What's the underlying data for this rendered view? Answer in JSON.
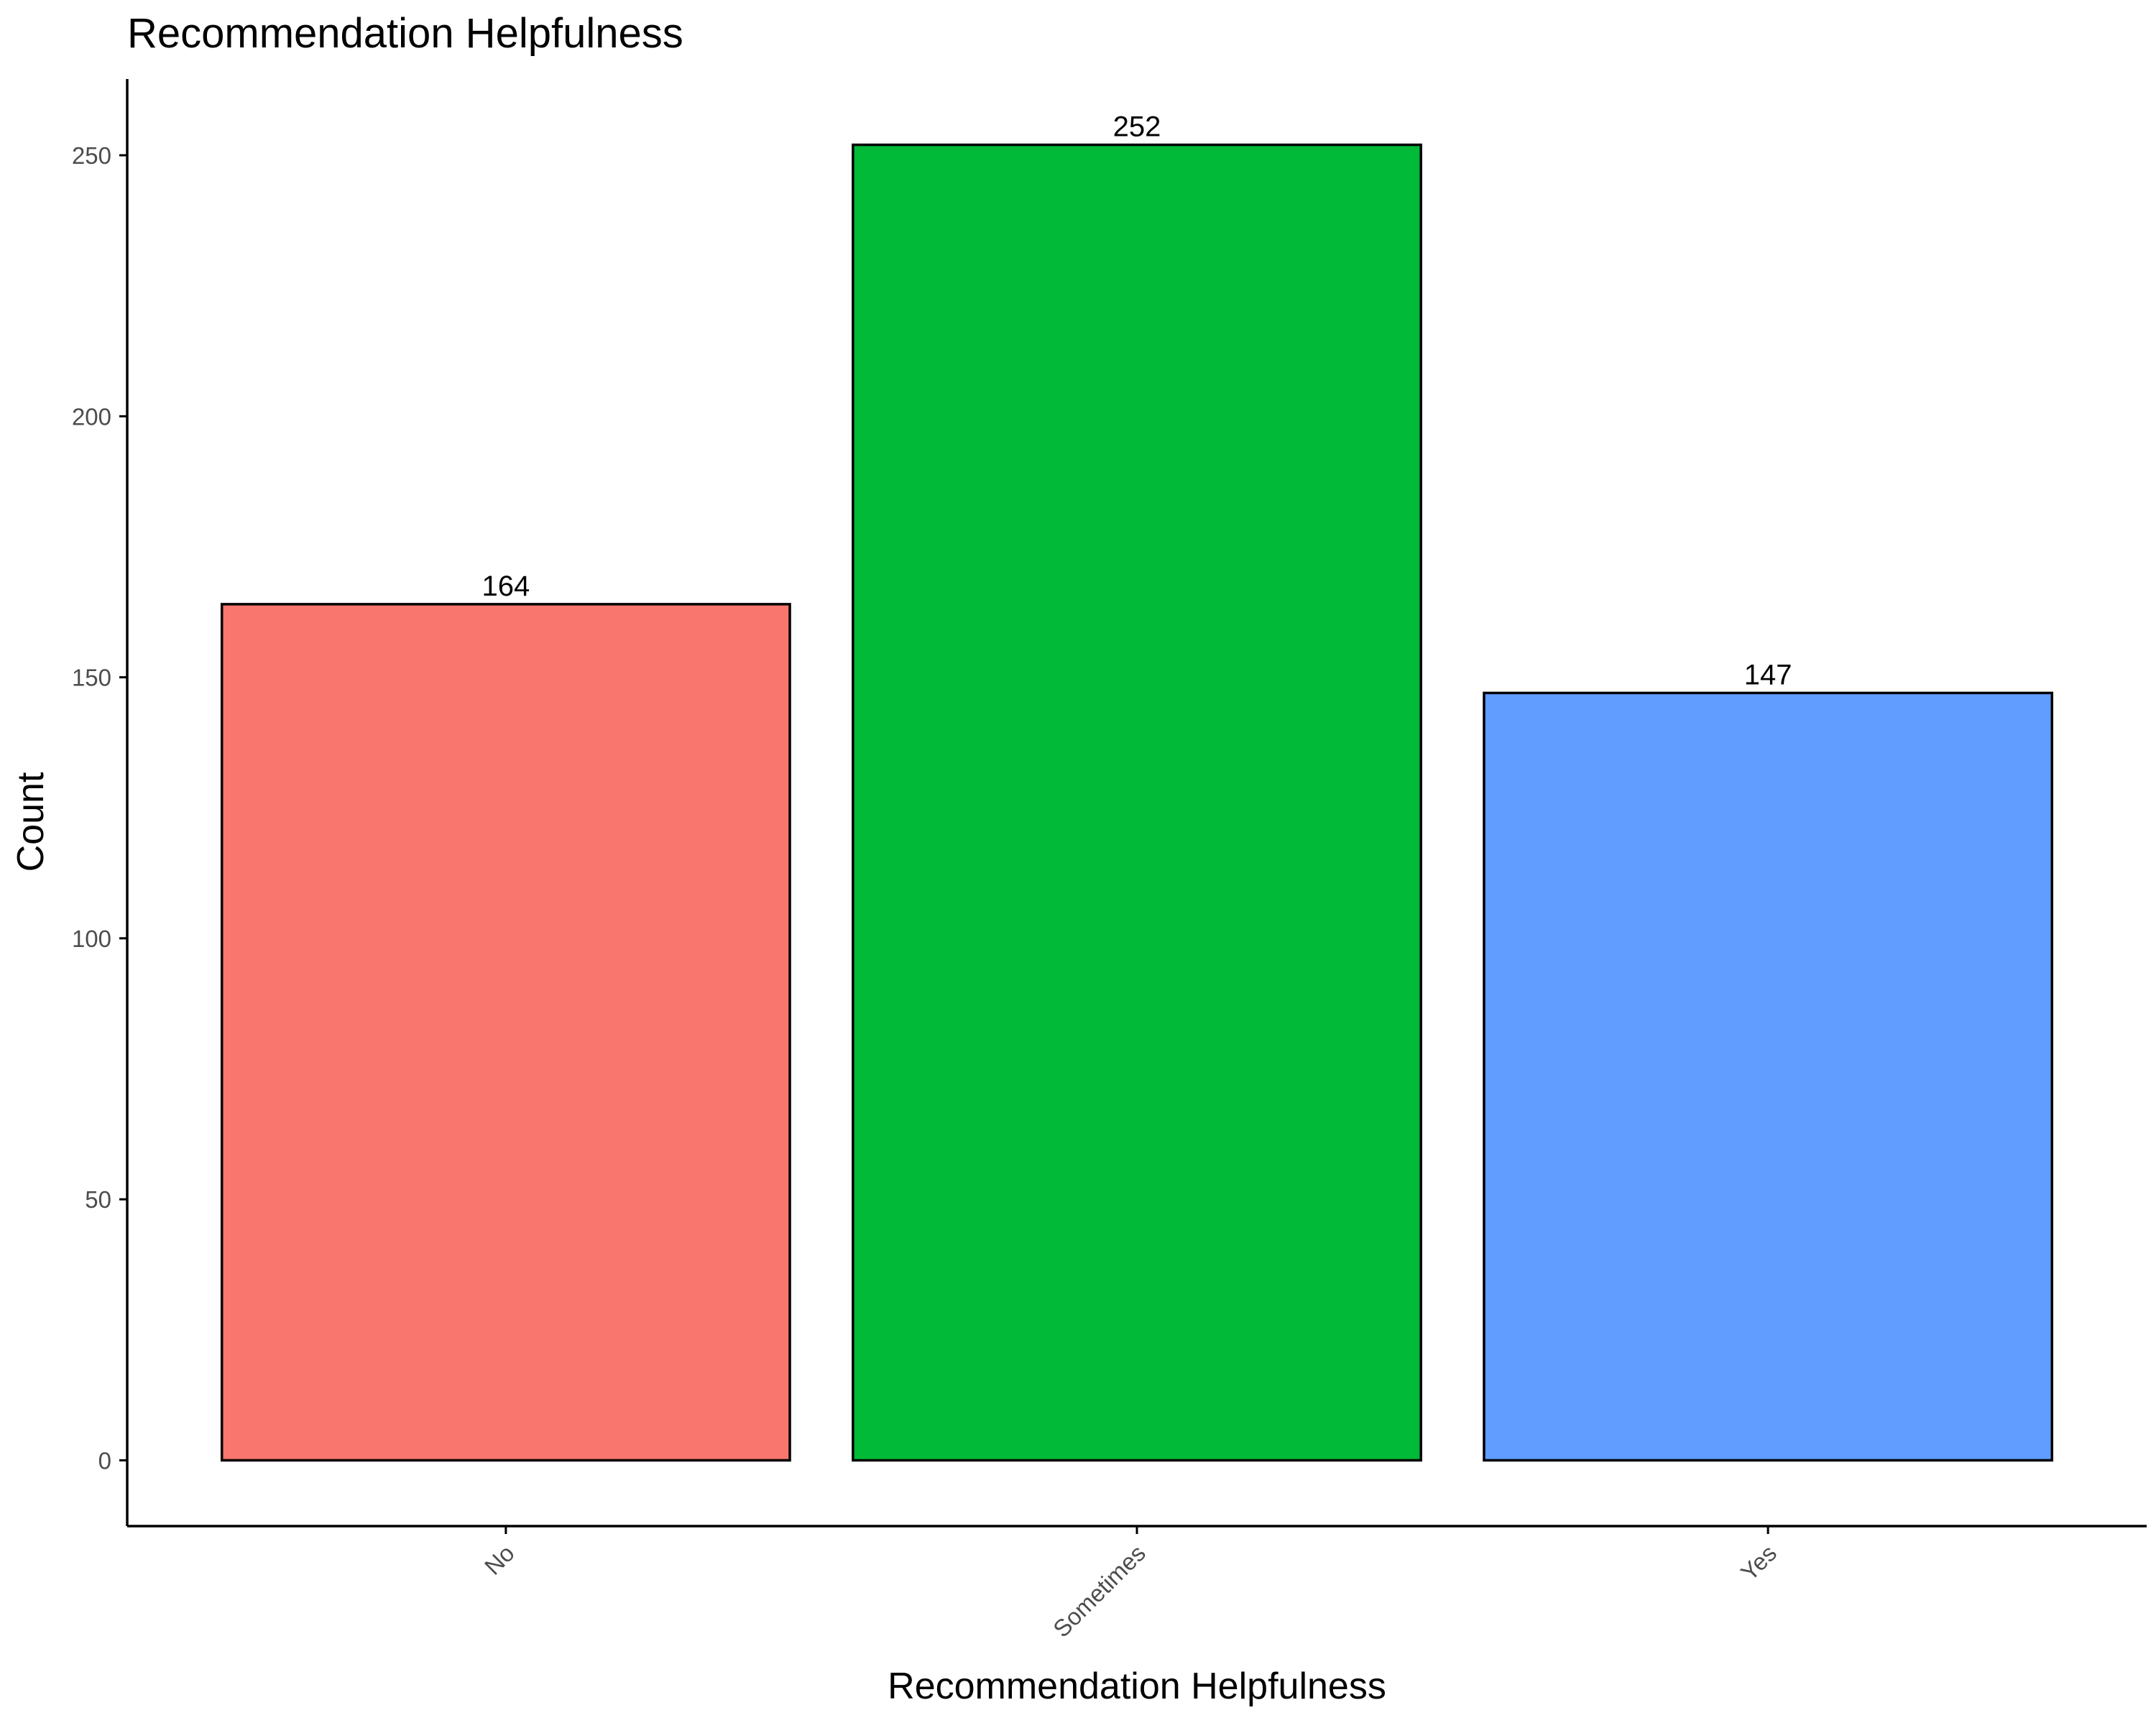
{
  "chart_data": {
    "type": "bar",
    "title": "Recommendation Helpfulness",
    "xlabel": "Recommendation Helpfulness",
    "ylabel": "Count",
    "categories": [
      "No",
      "Sometimes",
      "Yes"
    ],
    "values": [
      164,
      252,
      147
    ],
    "data_labels": [
      "164",
      "252",
      "147"
    ],
    "colors": [
      "#F8766D",
      "#00BA38",
      "#619CFF"
    ],
    "bar_outline_color": "#000000",
    "ylim": [
      -12.6,
      264.6
    ],
    "yticks": [
      0,
      50,
      100,
      150,
      200,
      250
    ],
    "ytick_labels": [
      "0",
      "50",
      "100",
      "150",
      "200",
      "250"
    ],
    "x_tick_rotation_deg": 45,
    "grid": false,
    "legend": "none"
  }
}
